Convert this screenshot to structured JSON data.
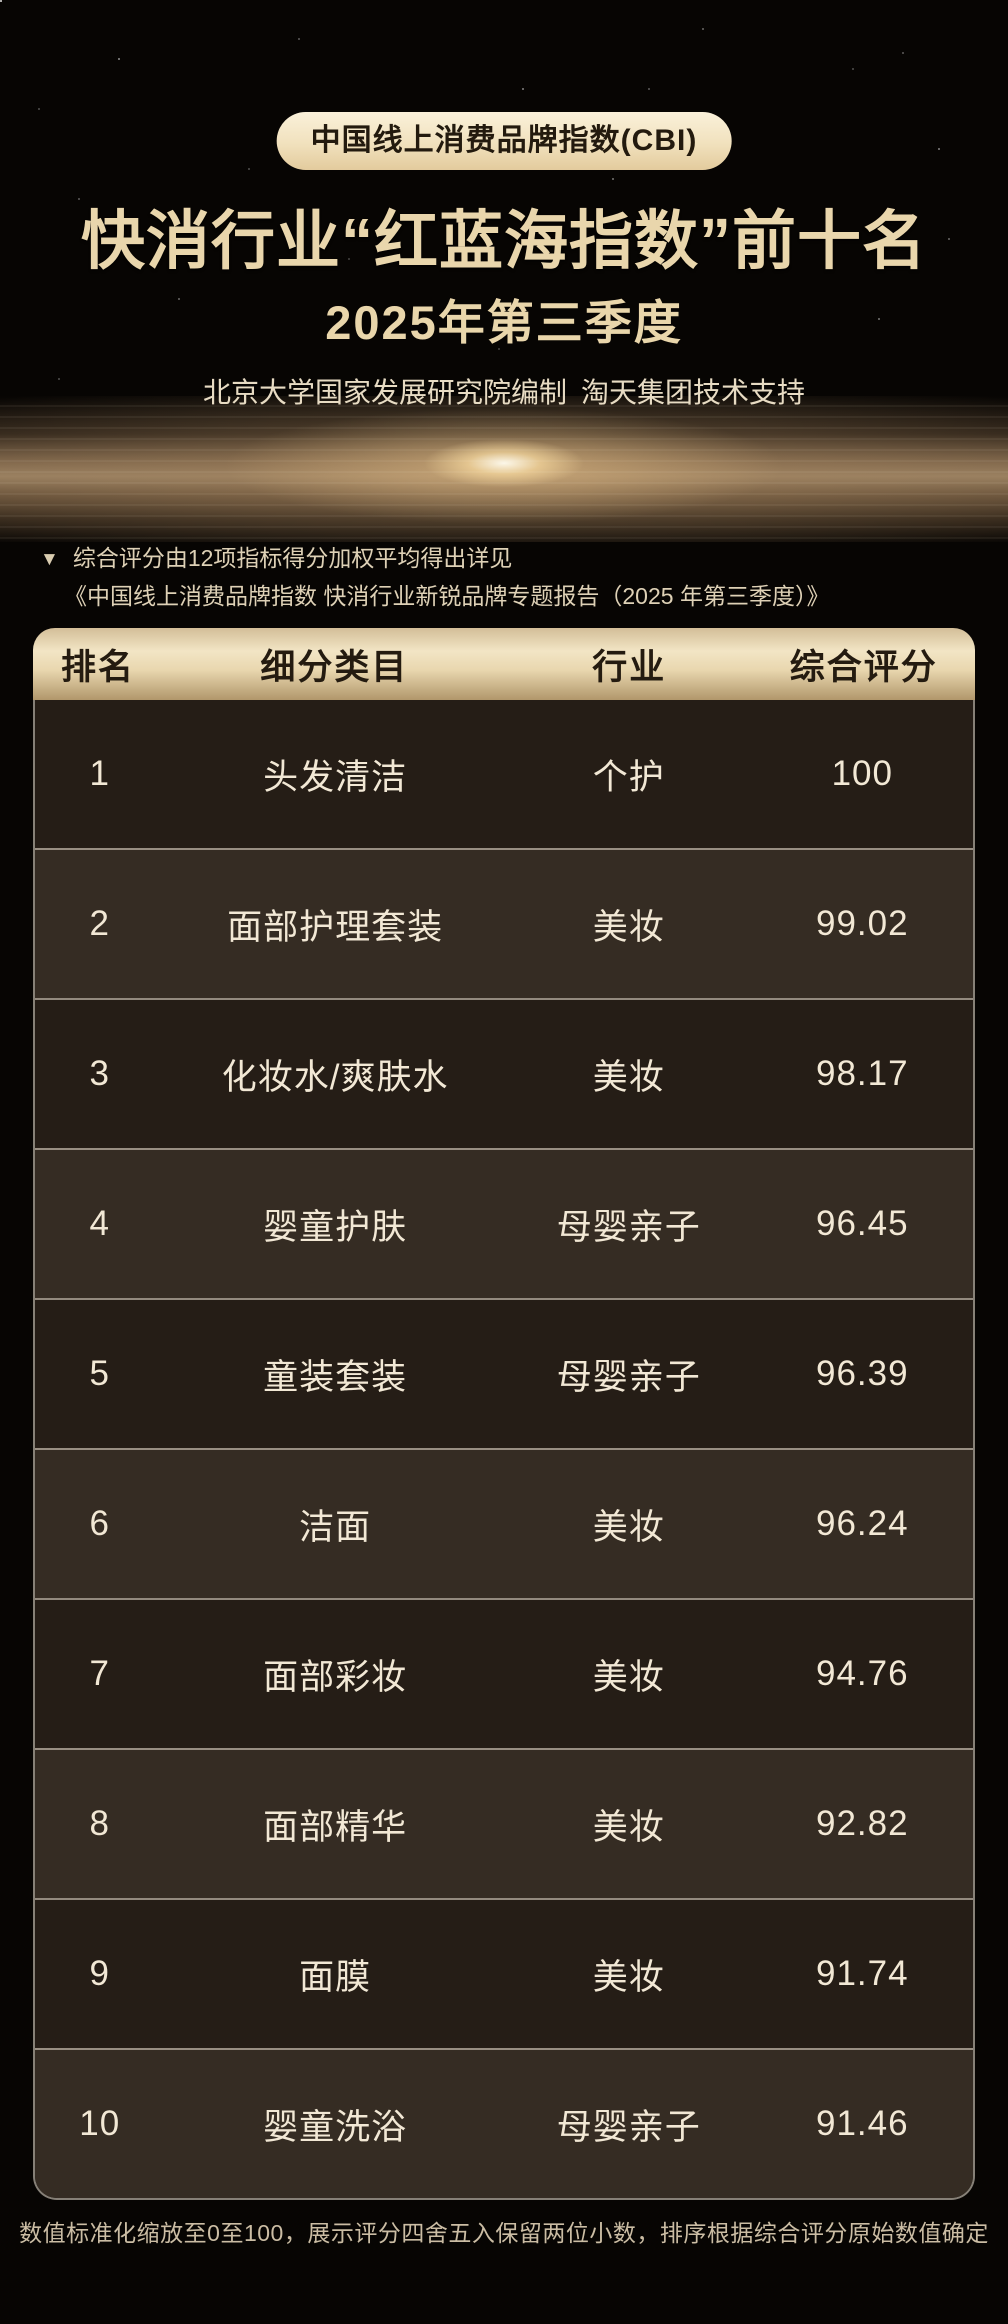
{
  "header": {
    "badge": "中国线上消费品牌指数(CBI)",
    "title": "快消行业“红蓝海指数”前十名",
    "subtitle": "2025年第三季度",
    "byline": "北京大学国家发展研究院编制 淘天集团技术支持"
  },
  "note": {
    "marker": "▼",
    "line1": "综合评分由12项指标得分加权平均得出详见",
    "line2": "《中国线上消费品牌指数 快消行业新锐品牌专题报告（2025 年第三季度）》"
  },
  "chart_data": {
    "type": "table",
    "title": "快消行业“红蓝海指数”前十名",
    "subtitle": "2025年第三季度",
    "columns": [
      "排名",
      "细分类目",
      "行业",
      "综合评分"
    ],
    "rows": [
      [
        "1",
        "头发清洁",
        "个护",
        "100"
      ],
      [
        "2",
        "面部护理套装",
        "美妆",
        "99.02"
      ],
      [
        "3",
        "化妆水/爽肤水",
        "美妆",
        "98.17"
      ],
      [
        "4",
        "婴童护肤",
        "母婴亲子",
        "96.45"
      ],
      [
        "5",
        "童装套装",
        "母婴亲子",
        "96.39"
      ],
      [
        "6",
        "洁面",
        "美妆",
        "96.24"
      ],
      [
        "7",
        "面部彩妆",
        "美妆",
        "94.76"
      ],
      [
        "8",
        "面部精华",
        "美妆",
        "92.82"
      ],
      [
        "9",
        "面膜",
        "美妆",
        "91.74"
      ],
      [
        "10",
        "婴童洗浴",
        "母婴亲子",
        "91.46"
      ]
    ]
  },
  "footer": {
    "text": "数值标准化缩放至0至100，展示评分四舍五入保留两位小数，排序根据综合评分原始数值确定"
  },
  "colors": {
    "background": "#070503",
    "gold_text": "#e9d6ac",
    "badge_bg": "#f1e1bd",
    "badge_text": "#231a0e",
    "header_gradient_top": "#d3be98",
    "header_gradient_mid": "#f2e5c5",
    "header_gradient_bottom": "#b1976b",
    "row_dark": "#251d16",
    "row_light": "#352c23",
    "cell_text": "#f2e8d5",
    "separator": "#d6cdbe",
    "note_text": "#ded1b6",
    "footer_text": "#cbbda4"
  }
}
